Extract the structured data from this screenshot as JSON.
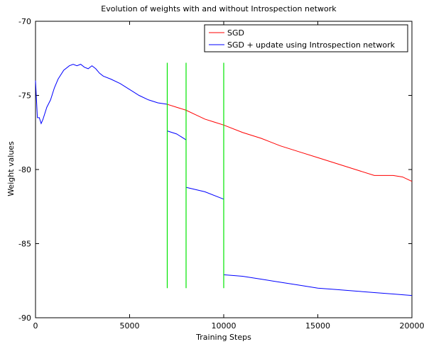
{
  "chart_data": {
    "type": "line",
    "title": "Evolution of weights with and without Introspection network",
    "xlabel": "Training Steps",
    "ylabel": "Weight values",
    "xlim": [
      0,
      20000
    ],
    "ylim": [
      -90,
      -70
    ],
    "xticks": [
      0,
      5000,
      10000,
      15000,
      20000
    ],
    "yticks": [
      -90,
      -85,
      -80,
      -75,
      -70
    ],
    "grid": false,
    "legend_position": "top-right",
    "series": [
      {
        "name": "SGD",
        "color": "#ff0000",
        "x": [
          7000,
          7500,
          8000,
          8500,
          9000,
          9500,
          10000,
          11000,
          12000,
          13000,
          14000,
          15000,
          16000,
          17000,
          18000,
          19000,
          19500,
          20000
        ],
        "y": [
          -75.6,
          -75.8,
          -76.0,
          -76.3,
          -76.6,
          -76.8,
          -77.0,
          -77.5,
          -77.9,
          -78.4,
          -78.8,
          -79.2,
          -79.6,
          -80.0,
          -80.4,
          -80.4,
          -80.5,
          -80.8
        ]
      },
      {
        "name": "SGD + update using Introspection network",
        "color": "#0000ff",
        "segments": [
          {
            "x": [
              0,
              100,
              200,
              300,
              400,
              600,
              800,
              1000,
              1200,
              1500,
              1800,
              2000,
              2200,
              2400,
              2600,
              2800,
              3000,
              3200,
              3400,
              3600,
              4000,
              4500,
              5000,
              5500,
              6000,
              6500,
              7000
            ],
            "y": [
              -74.0,
              -76.5,
              -76.5,
              -76.9,
              -76.6,
              -75.8,
              -75.3,
              -74.5,
              -73.9,
              -73.3,
              -73.0,
              -72.9,
              -73.0,
              -72.9,
              -73.1,
              -73.2,
              -73.0,
              -73.2,
              -73.5,
              -73.7,
              -73.9,
              -74.2,
              -74.6,
              -75.0,
              -75.3,
              -75.5,
              -75.6
            ]
          },
          {
            "x": [
              7000,
              7500,
              8000
            ],
            "y": [
              -77.4,
              -77.6,
              -78.0
            ]
          },
          {
            "x": [
              8000,
              9000,
              10000
            ],
            "y": [
              -81.2,
              -81.5,
              -82.0
            ]
          },
          {
            "x": [
              10000,
              11000,
              12000,
              13000,
              14000,
              15000,
              16000,
              17000,
              18000,
              19000,
              20000
            ],
            "y": [
              -87.1,
              -87.2,
              -87.4,
              -87.6,
              -87.8,
              -88.0,
              -88.1,
              -88.2,
              -88.3,
              -88.4,
              -88.5
            ]
          }
        ]
      }
    ],
    "vertical_markers": {
      "color": "#00e600",
      "x": [
        7000,
        8000,
        10000
      ],
      "y_range": [
        -88,
        -72.8
      ]
    }
  }
}
